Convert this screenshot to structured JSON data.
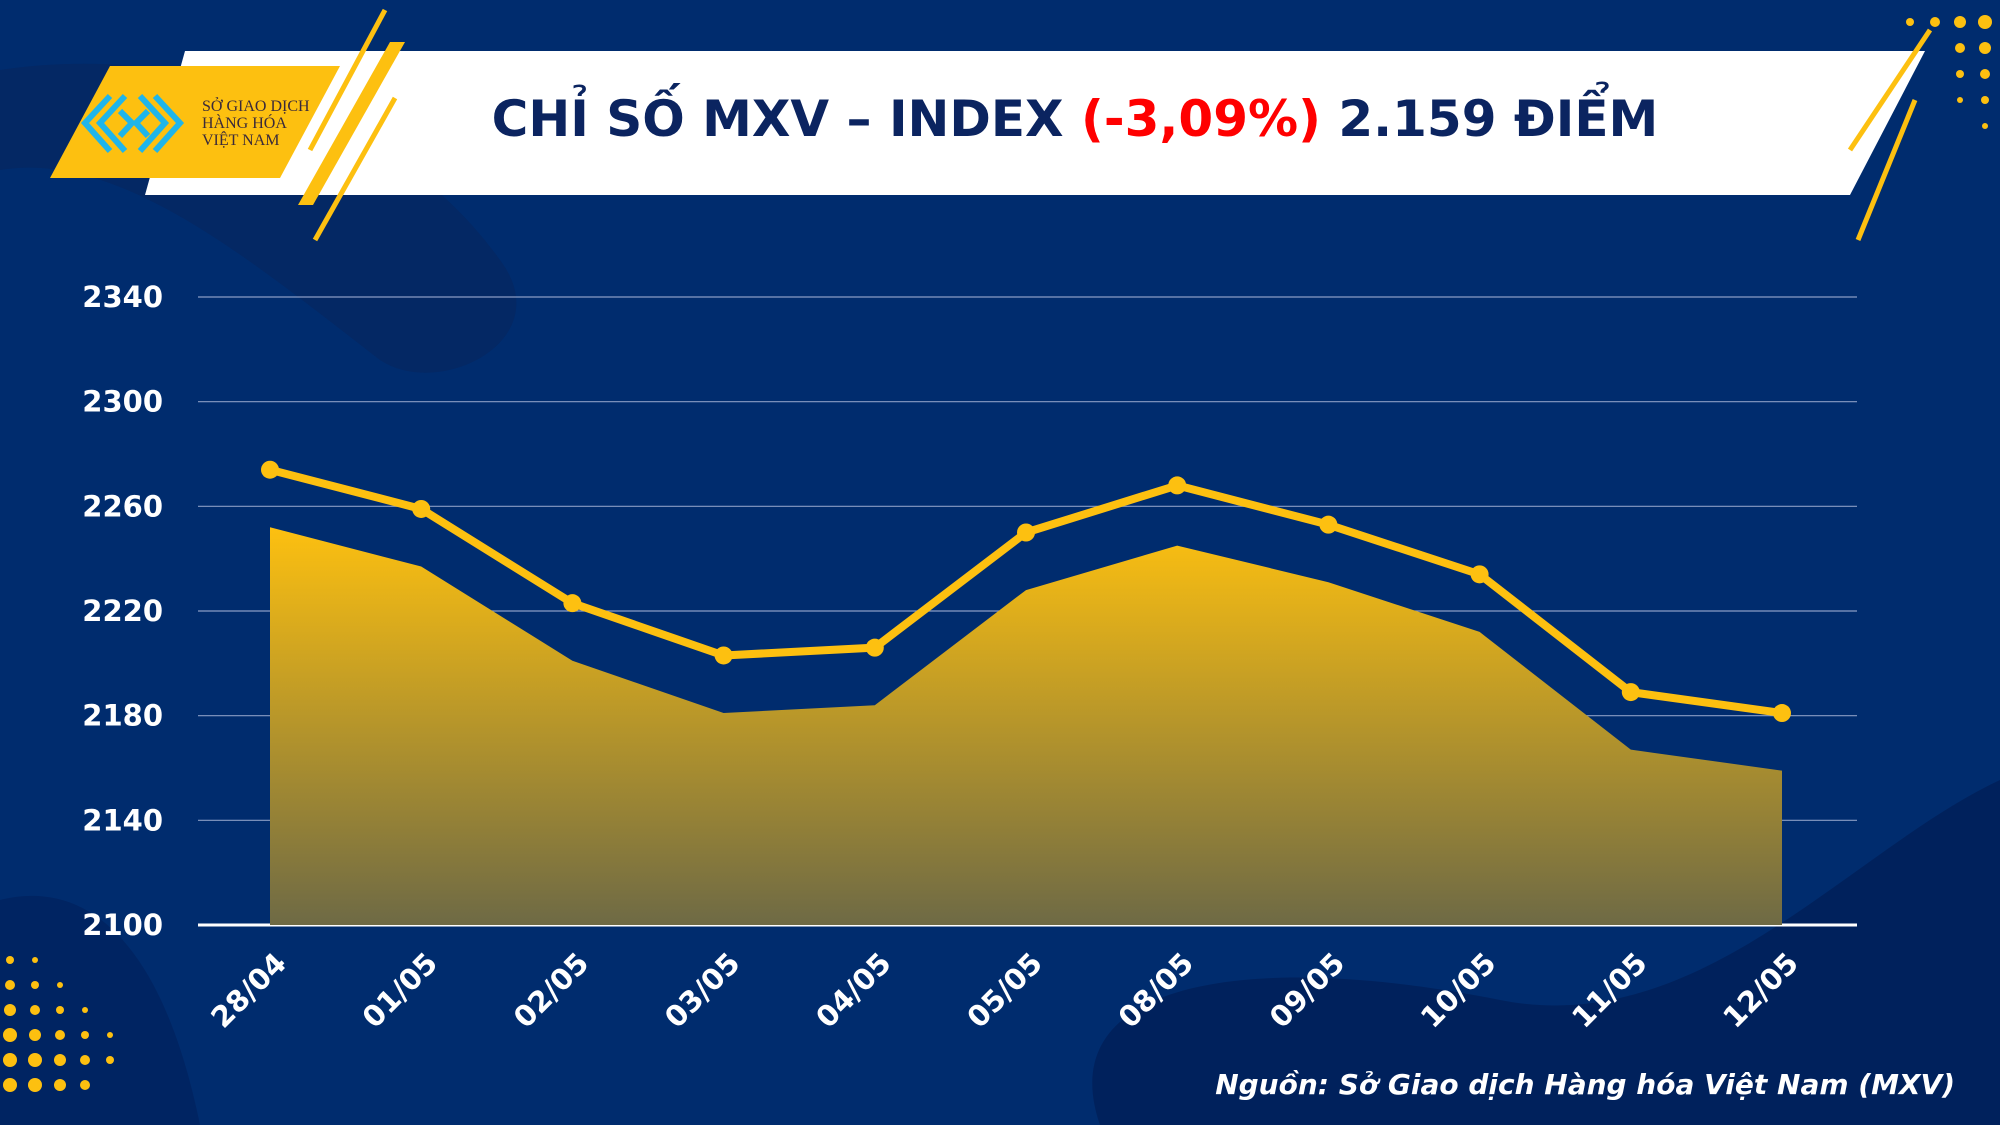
{
  "header": {
    "title_prefix": "CHỈ SỐ MXV – INDEX ",
    "change": "(-3,09%)",
    "title_suffix": " 2.159 ĐIỂM"
  },
  "logo": {
    "line1": "SỞ GIAO DỊCH",
    "line2": "HÀNG HÓA",
    "line3": "VIỆT NAM"
  },
  "source": "Nguồn: Sở Giao dịch Hàng hóa Việt Nam (MXV)",
  "colors": {
    "background": "#002c6e",
    "accent": "#fdc010",
    "negative": "#ff0000"
  },
  "chart_data": {
    "type": "area",
    "categories": [
      "28/04",
      "01/05",
      "02/05",
      "03/05",
      "04/05",
      "05/05",
      "08/05",
      "09/05",
      "10/05",
      "11/05",
      "12/05"
    ],
    "series": [
      {
        "values": [
          2252,
          2237,
          2201,
          2181,
          2184,
          2228,
          2245,
          2231,
          2212,
          2167,
          2159
        ]
      },
      {
        "values": [
          2274,
          2259,
          2223,
          2203,
          2206,
          2250,
          2268,
          2253,
          2234,
          2189,
          2181
        ]
      }
    ],
    "ylim": [
      2100,
      2340
    ],
    "yticks": [
      2100,
      2140,
      2180,
      2220,
      2260,
      2300,
      2340
    ],
    "grid": true
  }
}
